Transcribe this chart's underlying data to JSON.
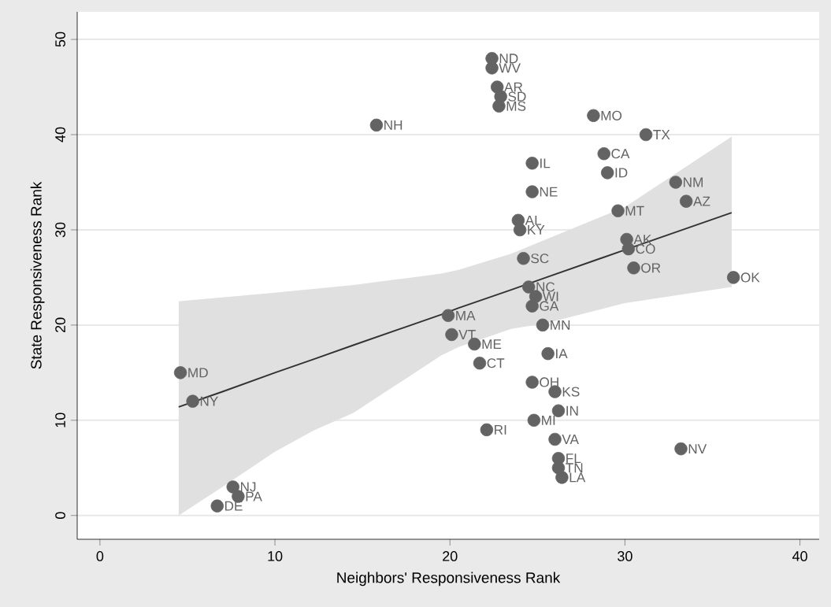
{
  "chart_data": {
    "type": "scatter",
    "xlabel": "Neighbors' Responsiveness Rank",
    "ylabel": "State Responsiveness Rank",
    "xlim": [
      -1.3,
      41.1
    ],
    "ylim": [
      -2.5,
      52.9
    ],
    "xticks": [
      0,
      10,
      20,
      30,
      40
    ],
    "yticks": [
      0,
      10,
      20,
      30,
      40,
      50
    ],
    "grid": "y",
    "marker": "circle",
    "series": [
      {
        "color": "#636363",
        "x": [
          22.4,
          22.4,
          22.7,
          22.9,
          22.8,
          15.8,
          28.2,
          31.2,
          28.8,
          24.7,
          29.0,
          32.9,
          24.7,
          33.5,
          29.6,
          23.9,
          24.0,
          30.1,
          30.2,
          24.2,
          30.5,
          36.2,
          24.5,
          24.9,
          24.7,
          19.9,
          25.3,
          20.1,
          21.4,
          25.6,
          21.7,
          4.6,
          24.7,
          26.0,
          5.3,
          26.2,
          24.8,
          22.1,
          26.0,
          33.2,
          26.2,
          26.2,
          26.4,
          7.6,
          7.9,
          6.7
        ],
        "values": [
          48,
          47,
          45,
          44,
          43,
          41,
          42,
          40,
          38,
          37,
          36,
          35,
          34,
          33,
          32,
          31,
          30,
          29,
          28,
          27,
          26,
          25,
          24,
          23,
          22,
          21,
          20,
          19,
          18,
          17,
          16,
          15,
          14,
          13,
          12,
          11,
          10,
          9,
          8,
          7,
          6,
          5,
          4,
          3,
          2,
          1
        ]
      },
      {
        "type": "line",
        "marker": "none",
        "color": "#333333",
        "x": [
          4.5,
          7,
          10,
          12.2,
          14.5,
          19.5,
          20.5,
          23.5,
          25.5,
          30,
          36.1
        ],
        "values": [
          11.4,
          13.0,
          15.0,
          16.4,
          17.9,
          21.1,
          21.8,
          23.7,
          25.0,
          27.9,
          31.8
        ],
        "lower": [
          0,
          3,
          6.7,
          8.9,
          10.8,
          16.8,
          17.7,
          19.6,
          20.2,
          22.3,
          24.0
        ],
        "upper": [
          22.5,
          22.9,
          23.4,
          23.8,
          24.2,
          25.4,
          25.8,
          27.5,
          29.0,
          32.4,
          39.8
        ]
      }
    ],
    "annotations": [
      {
        "text": "ND",
        "x": 22.4,
        "y": 48
      },
      {
        "text": "WV",
        "x": 22.4,
        "y": 47
      },
      {
        "text": "AR",
        "x": 22.7,
        "y": 45
      },
      {
        "text": "SD",
        "x": 22.9,
        "y": 44
      },
      {
        "text": "MS",
        "x": 22.8,
        "y": 43
      },
      {
        "text": "NH",
        "x": 15.8,
        "y": 41
      },
      {
        "text": "MO",
        "x": 28.2,
        "y": 42
      },
      {
        "text": "TX",
        "x": 31.2,
        "y": 40
      },
      {
        "text": "CA",
        "x": 28.8,
        "y": 38
      },
      {
        "text": "IL",
        "x": 24.7,
        "y": 37
      },
      {
        "text": "ID",
        "x": 29.0,
        "y": 36
      },
      {
        "text": "NM",
        "x": 32.9,
        "y": 35
      },
      {
        "text": "NE",
        "x": 24.7,
        "y": 34
      },
      {
        "text": "AZ",
        "x": 33.5,
        "y": 33
      },
      {
        "text": "MT",
        "x": 29.6,
        "y": 32
      },
      {
        "text": "AL",
        "x": 23.9,
        "y": 31
      },
      {
        "text": "KY",
        "x": 24.0,
        "y": 30
      },
      {
        "text": "AK",
        "x": 30.1,
        "y": 29
      },
      {
        "text": "CO",
        "x": 30.2,
        "y": 28
      },
      {
        "text": "SC",
        "x": 24.2,
        "y": 27
      },
      {
        "text": "OR",
        "x": 30.5,
        "y": 26
      },
      {
        "text": "OK",
        "x": 36.2,
        "y": 25
      },
      {
        "text": "NC",
        "x": 24.5,
        "y": 24
      },
      {
        "text": "WI",
        "x": 24.9,
        "y": 23
      },
      {
        "text": "GA",
        "x": 24.7,
        "y": 22
      },
      {
        "text": "MA",
        "x": 19.9,
        "y": 21
      },
      {
        "text": "MN",
        "x": 25.3,
        "y": 20
      },
      {
        "text": "VT",
        "x": 20.1,
        "y": 19
      },
      {
        "text": "ME",
        "x": 21.4,
        "y": 18
      },
      {
        "text": "IA",
        "x": 25.6,
        "y": 17
      },
      {
        "text": "CT",
        "x": 21.7,
        "y": 16
      },
      {
        "text": "MD",
        "x": 4.6,
        "y": 15
      },
      {
        "text": "OH",
        "x": 24.7,
        "y": 14
      },
      {
        "text": "KS",
        "x": 26.0,
        "y": 13
      },
      {
        "text": "NY",
        "x": 5.3,
        "y": 12
      },
      {
        "text": "IN",
        "x": 26.2,
        "y": 11
      },
      {
        "text": "MI",
        "x": 24.8,
        "y": 10
      },
      {
        "text": "RI",
        "x": 22.1,
        "y": 9
      },
      {
        "text": "VA",
        "x": 26.0,
        "y": 8
      },
      {
        "text": "NV",
        "x": 33.2,
        "y": 7
      },
      {
        "text": "FL",
        "x": 26.2,
        "y": 6
      },
      {
        "text": "TN",
        "x": 26.2,
        "y": 5
      },
      {
        "text": "LA",
        "x": 26.4,
        "y": 4
      },
      {
        "text": "NJ",
        "x": 7.6,
        "y": 3
      },
      {
        "text": "PA",
        "x": 7.9,
        "y": 2
      },
      {
        "text": "DE",
        "x": 6.7,
        "y": 1
      }
    ]
  }
}
